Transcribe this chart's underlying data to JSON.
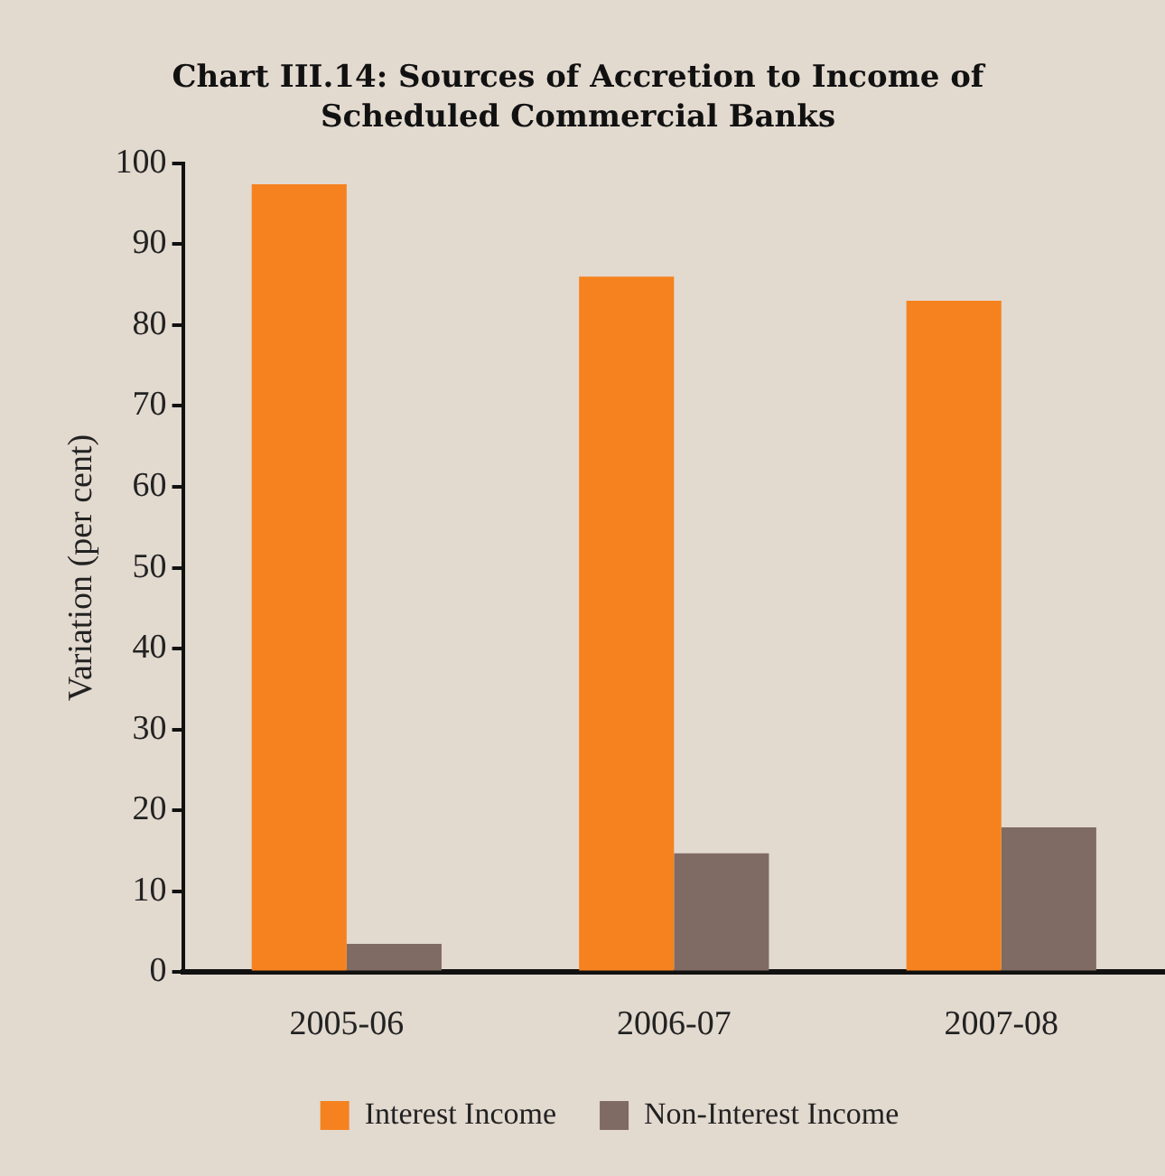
{
  "chart_data": {
    "type": "bar",
    "title": "Chart III.14: Sources of Accretion to Income of Scheduled Commercial Banks",
    "ylabel": "Variation (per cent)",
    "categories": [
      "2005-06",
      "2006-07",
      "2007-08"
    ],
    "series": [
      {
        "name": "Interest Income",
        "color": "#f5821f",
        "values": [
          97.4,
          86.0,
          83.0
        ]
      },
      {
        "name": "Non-Interest Income",
        "color": "#7f6b63",
        "values": [
          3.5,
          14.7,
          17.9
        ]
      }
    ],
    "ylim": [
      0,
      100
    ],
    "yticks": [
      0,
      10,
      20,
      30,
      40,
      50,
      60,
      70,
      80,
      90,
      100
    ],
    "grid": false,
    "legend": "bottom"
  }
}
